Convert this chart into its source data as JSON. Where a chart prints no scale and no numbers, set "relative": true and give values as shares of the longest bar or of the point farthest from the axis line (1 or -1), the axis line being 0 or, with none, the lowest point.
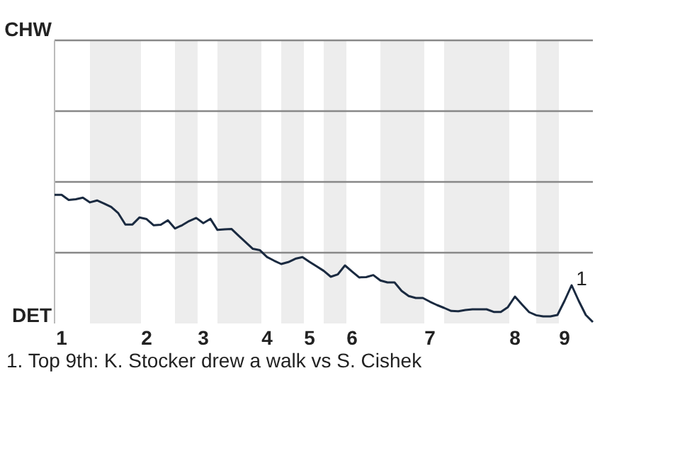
{
  "chart_data": {
    "type": "line",
    "relative": true,
    "categories": [
      null,
      "1",
      null,
      null,
      null,
      null,
      null,
      null,
      null,
      null,
      null,
      null,
      null,
      "2",
      null,
      null,
      null,
      null,
      null,
      null,
      null,
      "3",
      null,
      null,
      null,
      null,
      null,
      null,
      null,
      null,
      "4",
      null,
      null,
      null,
      null,
      null,
      "5",
      null,
      null,
      null,
      null,
      null,
      "6",
      null,
      null,
      null,
      null,
      null,
      null,
      null,
      null,
      null,
      null,
      "7",
      null,
      null,
      null,
      null,
      null,
      null,
      null,
      null,
      null,
      null,
      null,
      "8",
      null,
      null,
      null,
      null,
      null,
      null,
      "9",
      null,
      null,
      null,
      null
    ],
    "marker": "none",
    "line_style": "solid",
    "ref_lines": [
      {
        "axis": "y",
        "value": 0.55,
        "color": "#888888"
      },
      {
        "axis": "y",
        "value": 1.1,
        "color": "#888888"
      },
      {
        "axis": "y",
        "value": 1.65,
        "color": "#888888"
      },
      {
        "axis": "y",
        "value": 2.2,
        "color": "#888888"
      }
    ],
    "series": [
      {
        "color": "#1a2a40",
        "values": [
          1,
          1,
          0.96,
          0.965,
          0.978,
          0.941,
          0.956,
          0.932,
          0.905,
          0.857,
          0.769,
          0.769,
          0.824,
          0.811,
          0.763,
          0.767,
          0.802,
          0.738,
          0.763,
          0.796,
          0.82,
          0.78,
          0.813,
          0.727,
          0.732,
          0.734,
          0.681,
          0.631,
          0.58,
          0.569,
          0.516,
          0.488,
          0.462,
          0.477,
          0.503,
          0.516,
          0.479,
          0.444,
          0.409,
          0.363,
          0.382,
          0.451,
          0.404,
          0.358,
          0.36,
          0.376,
          0.334,
          0.319,
          0.319,
          0.253,
          0.213,
          0.198,
          0.198,
          0.169,
          0.143,
          0.121,
          0.097,
          0.095,
          0.105,
          0.11,
          0.11,
          0.11,
          0.09,
          0.09,
          0.127,
          0.209,
          0.147,
          0.088,
          0.064,
          0.055,
          0.055,
          0.066,
          0.176,
          0.297,
          0.176,
          0.066,
          0.011
        ]
      }
    ],
    "annotations": [
      "CHW",
      "DET",
      "1",
      "1. Top 9th: K. Stocker drew a walk vs S. Cishek"
    ]
  }
}
